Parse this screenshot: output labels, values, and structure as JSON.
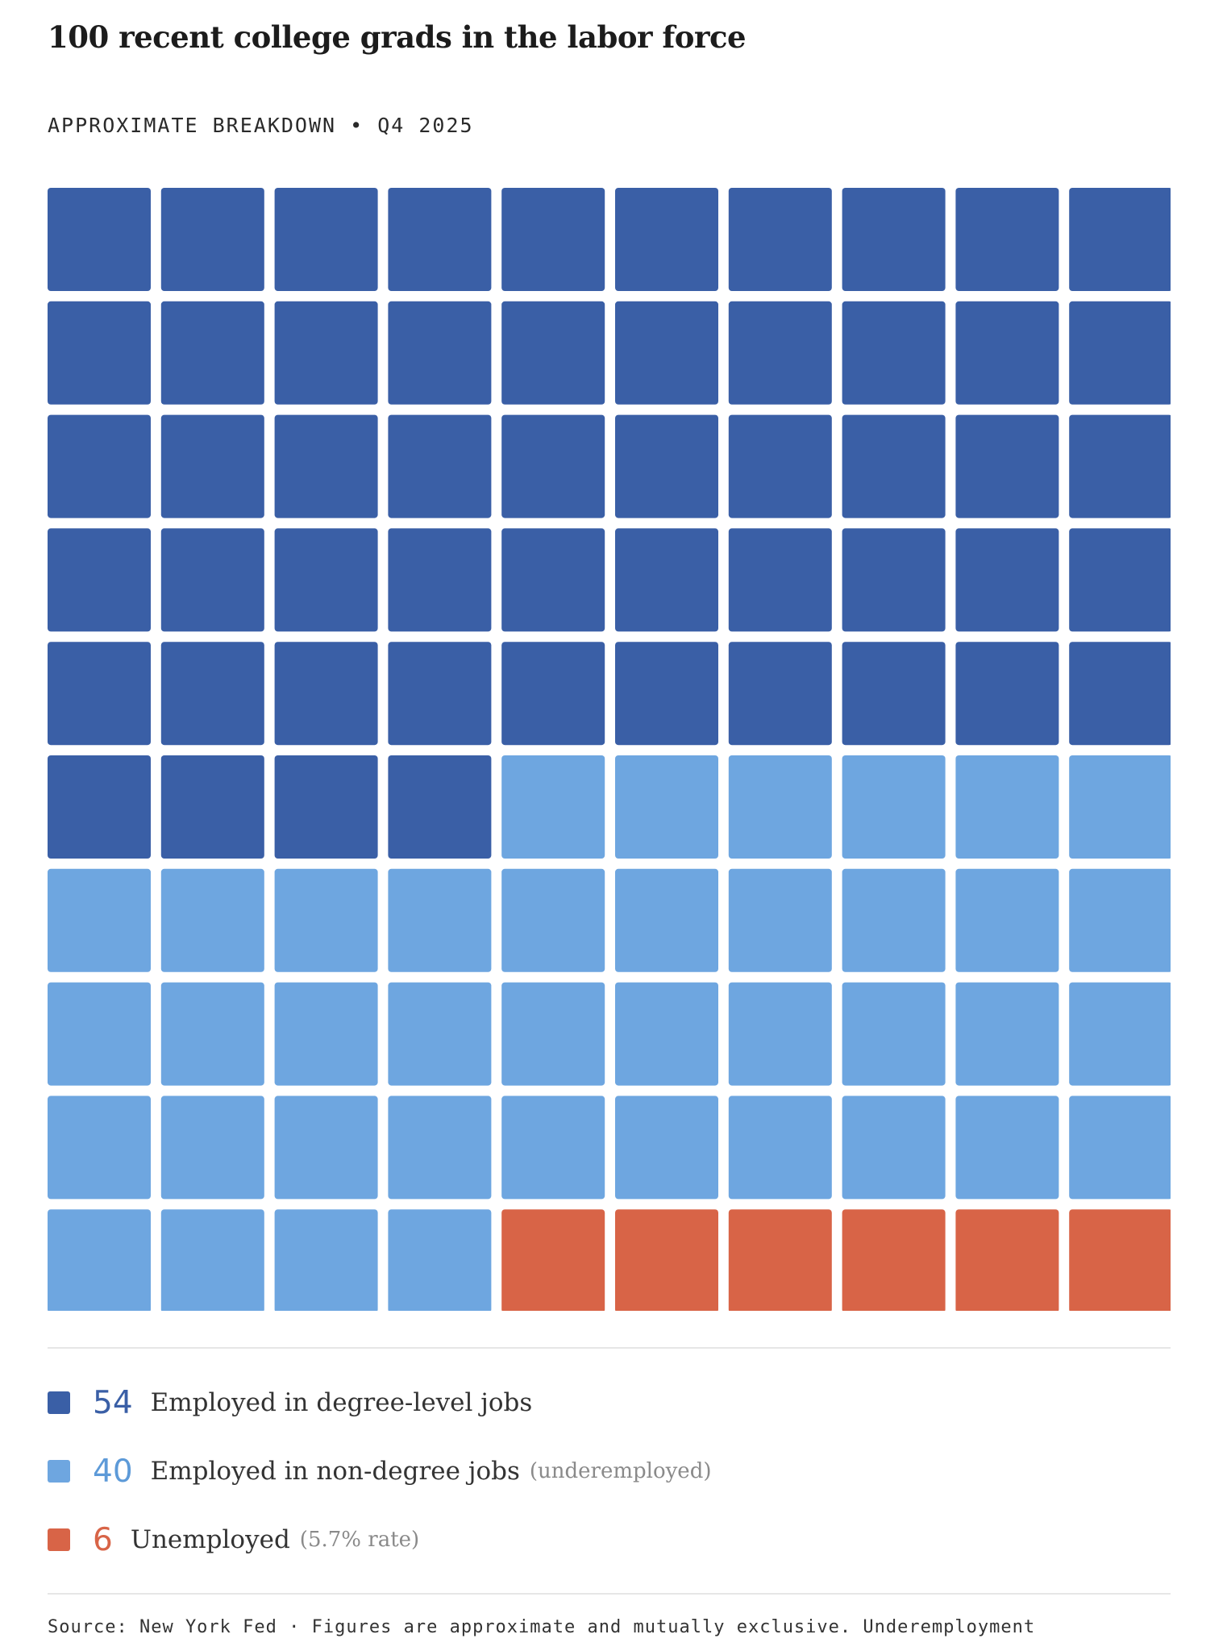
{
  "title": "100 recent college grads in the labor force",
  "subtitle": "APPROXIMATE BREAKDOWN • Q4 2025",
  "source": "Source: New York Fed · Figures are approximate and mutually exclusive. Underemployment",
  "chart_data": {
    "type": "waffle",
    "total": 100,
    "columns": 10,
    "rows": 10,
    "series": [
      {
        "name": "Employed in degree-level jobs",
        "value": 54,
        "note": "",
        "color": "#3a5fa6"
      },
      {
        "name": "Employed in non-degree jobs",
        "value": 40,
        "note": "(underemployed)",
        "color": "#6ea6e0"
      },
      {
        "name": "Unemployed",
        "value": 6,
        "note": "(5.7% rate)",
        "color": "#d86447"
      }
    ]
  }
}
